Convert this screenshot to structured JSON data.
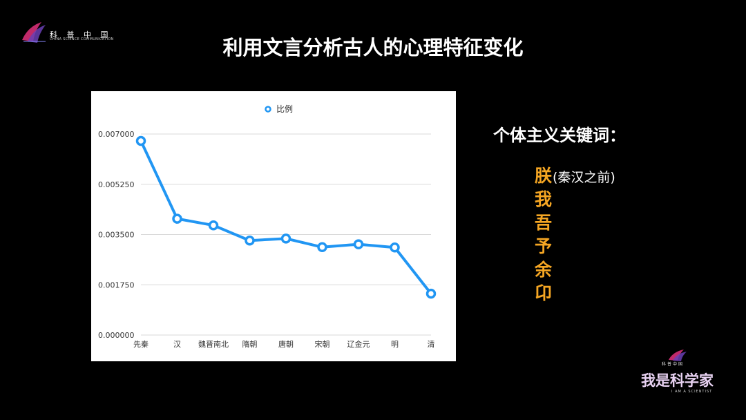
{
  "header": {
    "logo_cn": "科 普 中 国",
    "logo_en": "CHINA SCIENCE COMMUNICATION",
    "title": "利用文言分析古人的心理特征变化"
  },
  "keywords": {
    "heading": "个体主义关键词：",
    "items": [
      {
        "char": "朕",
        "note": "(秦汉之前)"
      },
      {
        "char": "我",
        "note": ""
      },
      {
        "char": "吾",
        "note": ""
      },
      {
        "char": "予",
        "note": ""
      },
      {
        "char": "余",
        "note": ""
      },
      {
        "char": "卬",
        "note": ""
      }
    ],
    "color": "#f5a623"
  },
  "footer_logo": {
    "brand_cn": "科普中国",
    "title": "我是科学家",
    "subtitle": "I AM A SCIENTIST"
  },
  "chart_data": {
    "type": "line",
    "categories": [
      "先秦",
      "汉",
      "魏晋南北",
      "隋朝",
      "唐朝",
      "宋朝",
      "辽金元",
      "明",
      "清"
    ],
    "series": [
      {
        "name": "比例",
        "values": [
          0.00676,
          0.00405,
          0.00382,
          0.00329,
          0.00336,
          0.00306,
          0.00316,
          0.00305,
          0.00144
        ],
        "color": "#2196f3"
      }
    ],
    "yticks": [
      "0.000000",
      "0.001750",
      "0.003500",
      "0.005250",
      "0.007000"
    ],
    "ylim": [
      0,
      0.007
    ],
    "grid": true,
    "legend_position": "top-center",
    "title": "",
    "xlabel": "",
    "ylabel": ""
  }
}
